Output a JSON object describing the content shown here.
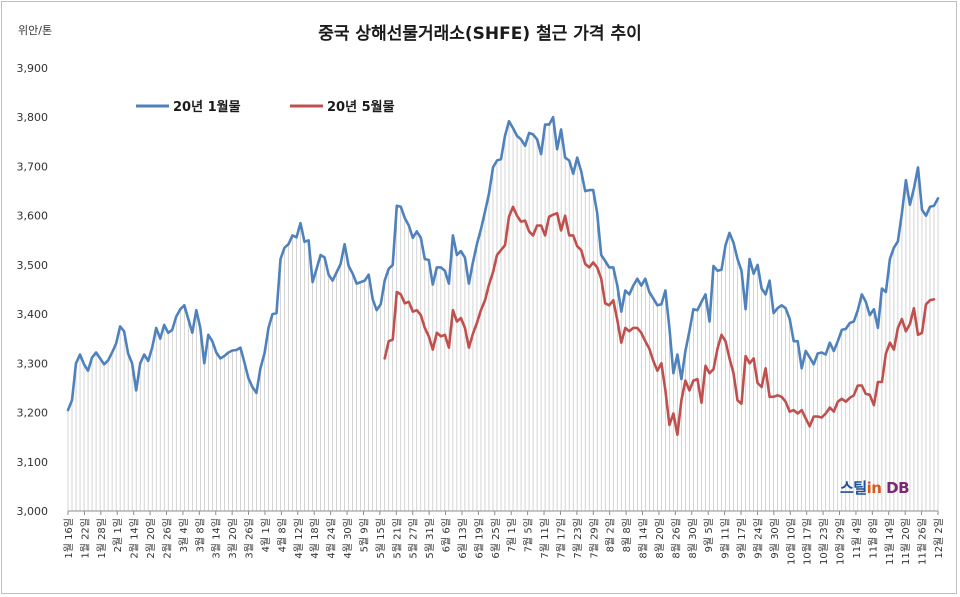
{
  "chart_data": {
    "type": "line",
    "title": "중국 상해선물거래소(SHFE) 철근 가격 추이",
    "unit_label": "위안/톤",
    "ylim": [
      3000,
      3900
    ],
    "yticks": [
      "3,000",
      "3,100",
      "3,200",
      "3,300",
      "3,400",
      "3,500",
      "3,600",
      "3,700",
      "3,800",
      "3,900"
    ],
    "ytick_values": [
      3000,
      3100,
      3200,
      3300,
      3400,
      3500,
      3600,
      3700,
      3800,
      3900
    ],
    "grid": false,
    "drop_lines": true,
    "legend_position": "top-left",
    "xtick_labels": [
      "1월 16일",
      "1월 22일",
      "1월 28일",
      "2월 1일",
      "2월 14일",
      "2월 20일",
      "2월 26일",
      "3월 4일",
      "3월 8일",
      "3월 14일",
      "3월 20일",
      "3월 26일",
      "4월 1일",
      "4월 8일",
      "4월 12일",
      "4월 18일",
      "4월 24일",
      "4월 30일",
      "5월 9일",
      "5월 15일",
      "5월 21일",
      "5월 27일",
      "5월 31일",
      "6월 6일",
      "6월 13일",
      "6월 19일",
      "6월 25일",
      "7월 1일",
      "7월 5일",
      "7월 11일",
      "7월 17일",
      "7월 23일",
      "7월 29일",
      "8월 2일",
      "8월 8일",
      "8월 14일",
      "8월 20일",
      "8월 26일",
      "8월 30일",
      "9월 5일",
      "9월 11일",
      "9월 17일",
      "9월 24일",
      "9월 30일",
      "10월 10일",
      "10월 17일",
      "10월 23일",
      "10월 29일",
      "11월 4일",
      "11월 8일",
      "11월 14일",
      "11월 20일",
      "11월 26일",
      "12월 2일"
    ],
    "series": [
      {
        "name": "20년 1월물",
        "color": "#4f81bd",
        "values": [
          3205,
          3225,
          3300,
          3318,
          3298,
          3285,
          3312,
          3322,
          3310,
          3298,
          3306,
          3322,
          3340,
          3375,
          3365,
          3320,
          3300,
          3245,
          3300,
          3318,
          3305,
          3332,
          3372,
          3350,
          3378,
          3362,
          3368,
          3395,
          3410,
          3418,
          3390,
          3362,
          3408,
          3372,
          3300,
          3358,
          3345,
          3322,
          3310,
          3315,
          3322,
          3326,
          3327,
          3332,
          3302,
          3270,
          3252,
          3240,
          3290,
          3320,
          3372,
          3400,
          3402,
          3512,
          3535,
          3542,
          3560,
          3556,
          3585,
          3547,
          3550,
          3465,
          3492,
          3520,
          3515,
          3480,
          3468,
          3485,
          3502,
          3542,
          3498,
          3482,
          3462,
          3465,
          3468,
          3480,
          3430,
          3408,
          3420,
          3468,
          3492,
          3500,
          3620,
          3618,
          3595,
          3580,
          3555,
          3568,
          3555,
          3512,
          3510,
          3460,
          3495,
          3495,
          3488,
          3462,
          3560,
          3520,
          3528,
          3515,
          3462,
          3505,
          3542,
          3572,
          3608,
          3645,
          3698,
          3712,
          3715,
          3762,
          3792,
          3778,
          3762,
          3755,
          3742,
          3768,
          3765,
          3755,
          3725,
          3785,
          3785,
          3800,
          3735,
          3775,
          3718,
          3712,
          3685,
          3718,
          3690,
          3650,
          3652,
          3652,
          3605,
          3520,
          3508,
          3495,
          3495,
          3458,
          3405,
          3448,
          3440,
          3458,
          3472,
          3458,
          3472,
          3445,
          3432,
          3418,
          3420,
          3448,
          3372,
          3280,
          3318,
          3268,
          3325,
          3365,
          3410,
          3408,
          3425,
          3440,
          3385,
          3498,
          3488,
          3490,
          3540,
          3565,
          3545,
          3512,
          3488,
          3410,
          3512,
          3482,
          3500,
          3452,
          3440,
          3468,
          3402,
          3412,
          3418,
          3412,
          3390,
          3345,
          3345,
          3290,
          3325,
          3312,
          3298,
          3320,
          3322,
          3318,
          3342,
          3325,
          3345,
          3368,
          3370,
          3382,
          3385,
          3408,
          3440,
          3425,
          3398,
          3410,
          3372,
          3452,
          3445,
          3512,
          3535,
          3548,
          3605,
          3672,
          3622,
          3655,
          3698,
          3612,
          3600,
          3618,
          3620,
          3635
        ]
      },
      {
        "name": "20년 5월물",
        "color": "#c0504d",
        "start_index": 79,
        "values": [
          3310,
          3345,
          3348,
          3445,
          3440,
          3422,
          3425,
          3405,
          3408,
          3398,
          3372,
          3355,
          3328,
          3362,
          3355,
          3358,
          3332,
          3408,
          3385,
          3392,
          3372,
          3332,
          3360,
          3382,
          3408,
          3428,
          3460,
          3485,
          3520,
          3530,
          3540,
          3598,
          3618,
          3600,
          3588,
          3590,
          3568,
          3560,
          3580,
          3580,
          3560,
          3598,
          3602,
          3605,
          3570,
          3600,
          3560,
          3560,
          3538,
          3530,
          3502,
          3495,
          3505,
          3495,
          3472,
          3422,
          3418,
          3428,
          3388,
          3342,
          3372,
          3365,
          3372,
          3372,
          3362,
          3345,
          3330,
          3305,
          3285,
          3300,
          3245,
          3175,
          3198,
          3155,
          3225,
          3265,
          3245,
          3265,
          3268,
          3220,
          3295,
          3280,
          3288,
          3330,
          3358,
          3345,
          3310,
          3280,
          3225,
          3218,
          3315,
          3300,
          3310,
          3260,
          3252,
          3290,
          3232,
          3232,
          3235,
          3232,
          3222,
          3202,
          3205,
          3198,
          3205,
          3188,
          3172,
          3192,
          3192,
          3190,
          3198,
          3210,
          3202,
          3222,
          3228,
          3222,
          3230,
          3235,
          3255,
          3255,
          3238,
          3236,
          3215,
          3262,
          3262,
          3320,
          3342,
          3328,
          3372,
          3390,
          3365,
          3380,
          3412,
          3358,
          3362,
          3420,
          3428,
          3430
        ]
      }
    ]
  },
  "logo": {
    "part1": "스틸",
    "part2": "in",
    "part3": " DB"
  }
}
